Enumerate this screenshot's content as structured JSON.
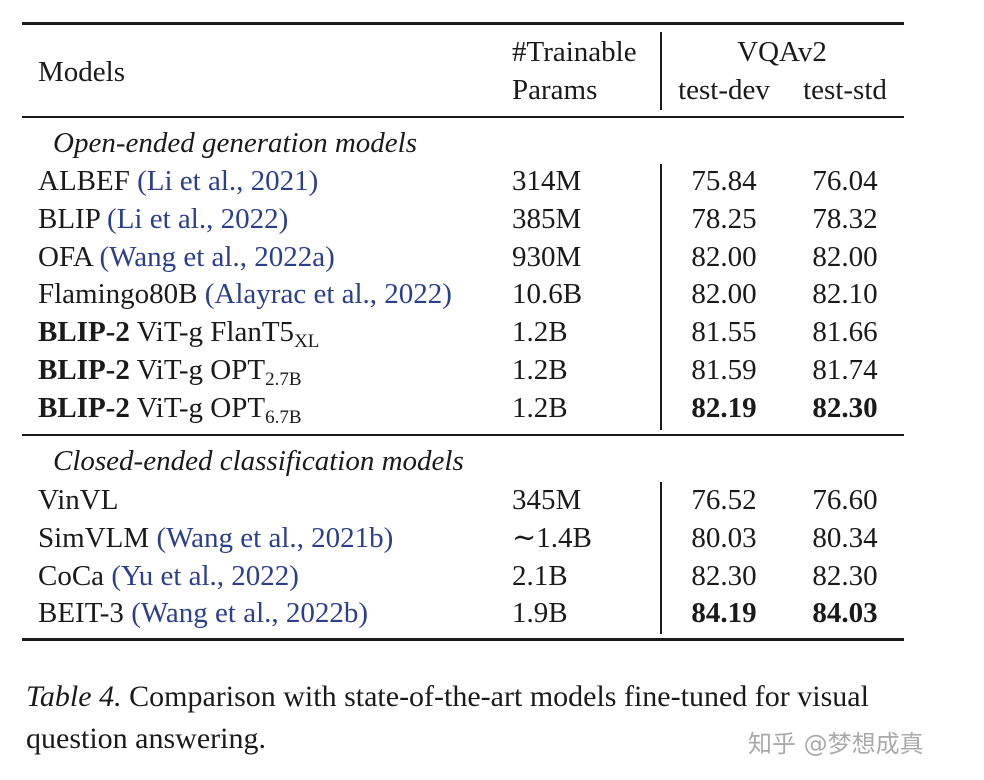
{
  "table": {
    "header": {
      "models": "Models",
      "params_line1": "#Trainable",
      "params_line2": "Params",
      "vqa": "VQAv2",
      "test_dev": "test-dev",
      "test_std": "test-std"
    },
    "sections": [
      {
        "title": "Open-ended generation models",
        "rows": [
          {
            "bold": "",
            "name": "ALBEF ",
            "sub": "",
            "cite": "(Li et al., 2021)",
            "params": "314M",
            "dev": "75.84",
            "std": "76.04",
            "dev_bold": false,
            "std_bold": false
          },
          {
            "bold": "",
            "name": "BLIP ",
            "sub": "",
            "cite": "(Li et al., 2022)",
            "params": "385M",
            "dev": "78.25",
            "std": "78.32",
            "dev_bold": false,
            "std_bold": false
          },
          {
            "bold": "",
            "name": "OFA ",
            "sub": "",
            "cite": "(Wang et al., 2022a)",
            "params": "930M",
            "dev": "82.00",
            "std": "82.00",
            "dev_bold": false,
            "std_bold": false
          },
          {
            "bold": "",
            "name": "Flamingo80B ",
            "sub": "",
            "cite": "(Alayrac et al., 2022)",
            "params": "10.6B",
            "dev": "82.00",
            "std": "82.10",
            "dev_bold": false,
            "std_bold": false
          },
          {
            "bold": "BLIP-2",
            "name": " ViT-g FlanT5",
            "sub": "XL",
            "cite": "",
            "params": "1.2B",
            "dev": "81.55",
            "std": "81.66",
            "dev_bold": false,
            "std_bold": false
          },
          {
            "bold": "BLIP-2",
            "name": " ViT-g OPT",
            "sub": "2.7B",
            "cite": "",
            "params": "1.2B",
            "dev": "81.59",
            "std": "81.74",
            "dev_bold": false,
            "std_bold": false
          },
          {
            "bold": "BLIP-2",
            "name": " ViT-g OPT",
            "sub": "6.7B",
            "cite": "",
            "params": "1.2B",
            "dev": "82.19",
            "std": "82.30",
            "dev_bold": true,
            "std_bold": true
          }
        ]
      },
      {
        "title": "Closed-ended classification models",
        "rows": [
          {
            "bold": "",
            "name": "VinVL",
            "sub": "",
            "cite": "",
            "params": "345M",
            "dev": "76.52",
            "std": "76.60",
            "dev_bold": false,
            "std_bold": false
          },
          {
            "bold": "",
            "name": "SimVLM ",
            "sub": "",
            "cite": "(Wang et al., 2021b)",
            "params": "∼1.4B",
            "dev": "80.03",
            "std": "80.34",
            "dev_bold": false,
            "std_bold": false
          },
          {
            "bold": "",
            "name": "CoCa ",
            "sub": "",
            "cite": "(Yu et al., 2022)",
            "params": "2.1B",
            "dev": "82.30",
            "std": "82.30",
            "dev_bold": false,
            "std_bold": false
          },
          {
            "bold": "",
            "name": "BEIT-3 ",
            "sub": "",
            "cite": "(Wang et al., 2022b)",
            "params": "1.9B",
            "dev": "84.19",
            "std": "84.03",
            "dev_bold": true,
            "std_bold": true
          }
        ]
      }
    ]
  },
  "caption": {
    "label": "Table 4.",
    "text": " Comparison with state-of-the-art models fine-tuned for visual question answering."
  },
  "watermark": "知乎 @梦想成真"
}
